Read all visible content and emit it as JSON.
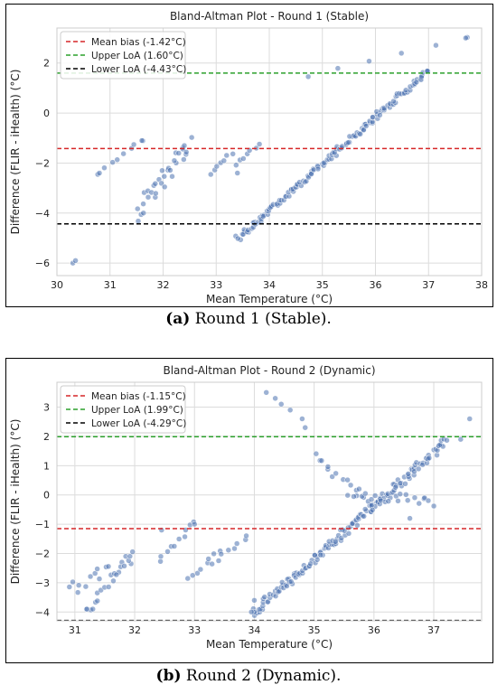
{
  "chart_data": [
    {
      "type": "scatter",
      "title": "Bland-Altman Plot - Round 1 (Stable)",
      "xlabel": "Mean Temperature (°C)",
      "ylabel": "Difference (FLIR - iHealth) (°C)",
      "xlim": [
        30,
        38
      ],
      "ylim": [
        -6.5,
        3.4
      ],
      "xticks": [
        30,
        31,
        32,
        33,
        34,
        35,
        36,
        37,
        38
      ],
      "yticks": [
        -6,
        -4,
        -2,
        0,
        2
      ],
      "grid": true,
      "legend_position": "top-left",
      "reference_lines": [
        {
          "label": "Mean bias (-1.42°C)",
          "value": -1.42,
          "color": "#d62728"
        },
        {
          "label": "Upper LoA (1.60°C)",
          "value": 1.6,
          "color": "#2ca02c"
        },
        {
          "label": "Lower LoA (-4.43°C)",
          "value": -4.43,
          "color": "#000000"
        }
      ],
      "series": [
        {
          "color": "#4c72b0",
          "segments": [
            {
              "x0": 33.4,
              "x1": 37.0,
              "y0": -5.0,
              "y1": 1.7,
              "n": 150,
              "spread": 0.12
            },
            {
              "x0": 30.8,
              "x1": 31.6,
              "y0": -2.4,
              "y1": -1.1,
              "n": 8,
              "spread": 0.06
            },
            {
              "x0": 31.5,
              "x1": 32.5,
              "y0": -3.9,
              "y1": -1.3,
              "n": 32,
              "spread": 0.45
            },
            {
              "x0": 32.9,
              "x1": 33.3,
              "y0": -2.4,
              "y1": -1.6,
              "n": 7,
              "spread": 0.08
            },
            {
              "x0": 33.4,
              "x1": 33.8,
              "y0": -2.1,
              "y1": -1.2,
              "n": 7,
              "spread": 0.08
            },
            {
              "x0": 34.7,
              "x1": 37.7,
              "y0": 1.5,
              "y1": 3.0,
              "n": 6,
              "spread": 0.05
            }
          ],
          "points": [
            [
              30.3,
              -6.0
            ],
            [
              30.35,
              -5.9
            ],
            [
              30.8,
              -2.4
            ],
            [
              33.4,
              -2.4
            ],
            [
              37.7,
              3.0
            ],
            [
              32.4,
              -1.3
            ],
            [
              31.6,
              -1.1
            ]
          ]
        }
      ]
    },
    {
      "type": "scatter",
      "title": "Bland-Altman Plot - Round 2 (Dynamic)",
      "xlabel": "Mean Temperature (°C)",
      "ylabel": "Difference (FLIR - iHealth) (°C)",
      "xlim": [
        30.7,
        37.8
      ],
      "ylim": [
        -4.3,
        3.85
      ],
      "xticks": [
        31,
        32,
        33,
        34,
        35,
        36,
        37
      ],
      "yticks": [
        -4,
        -3,
        -2,
        -1,
        0,
        1,
        2,
        3
      ],
      "grid": true,
      "legend_position": "top-left",
      "reference_lines": [
        {
          "label": "Mean bias (-1.15°C)",
          "value": -1.15,
          "color": "#d62728"
        },
        {
          "label": "Upper LoA (1.99°C)",
          "value": 1.99,
          "color": "#2ca02c"
        },
        {
          "label": "Lower LoA (-4.29°C)",
          "value": -4.29,
          "color": "#000000"
        }
      ],
      "series": [
        {
          "color": "#4c72b0",
          "segments": [
            {
              "x0": 34.0,
              "x1": 37.2,
              "y0": -4.0,
              "y1": 1.8,
              "n": 160,
              "spread": 0.15
            },
            {
              "x0": 30.9,
              "x1": 31.9,
              "y0": -3.2,
              "y1": -2.3,
              "n": 16,
              "spread": 0.35
            },
            {
              "x0": 31.2,
              "x1": 32.0,
              "y0": -4.0,
              "y1": -2.0,
              "n": 16,
              "spread": 0.12
            },
            {
              "x0": 32.9,
              "x1": 33.4,
              "y0": -2.9,
              "y1": -1.9,
              "n": 8,
              "spread": 0.08
            },
            {
              "x0": 32.4,
              "x1": 33.0,
              "y0": -2.3,
              "y1": -1.0,
              "n": 10,
              "spread": 0.12
            },
            {
              "x0": 33.3,
              "x1": 33.9,
              "y0": -2.3,
              "y1": -1.4,
              "n": 8,
              "spread": 0.08
            },
            {
              "x0": 35.0,
              "x1": 36.0,
              "y0": 1.3,
              "y1": -0.4,
              "n": 16,
              "spread": 0.12
            },
            {
              "x0": 35.6,
              "x1": 37.0,
              "y0": 0.1,
              "y1": -0.3,
              "n": 22,
              "spread": 0.18
            }
          ],
          "points": [
            [
              34.2,
              3.5
            ],
            [
              34.35,
              3.3
            ],
            [
              34.45,
              3.1
            ],
            [
              34.6,
              2.9
            ],
            [
              34.8,
              2.6
            ],
            [
              34.85,
              2.3
            ],
            [
              37.6,
              2.6
            ],
            [
              37.45,
              1.9
            ],
            [
              36.6,
              -0.8
            ],
            [
              34.0,
              -3.6
            ],
            [
              34.0,
              -4.0
            ],
            [
              33.95,
              -4.0
            ],
            [
              31.2,
              -3.9
            ],
            [
              31.3,
              -3.9
            ],
            [
              33.0,
              -1.0
            ],
            [
              32.45,
              -1.2
            ]
          ]
        }
      ]
    }
  ],
  "captions": {
    "a": {
      "label": "(a)",
      "text": " Round 1 (Stable)."
    },
    "b": {
      "label": "(b)",
      "text": " Round 2 (Dynamic)."
    }
  }
}
